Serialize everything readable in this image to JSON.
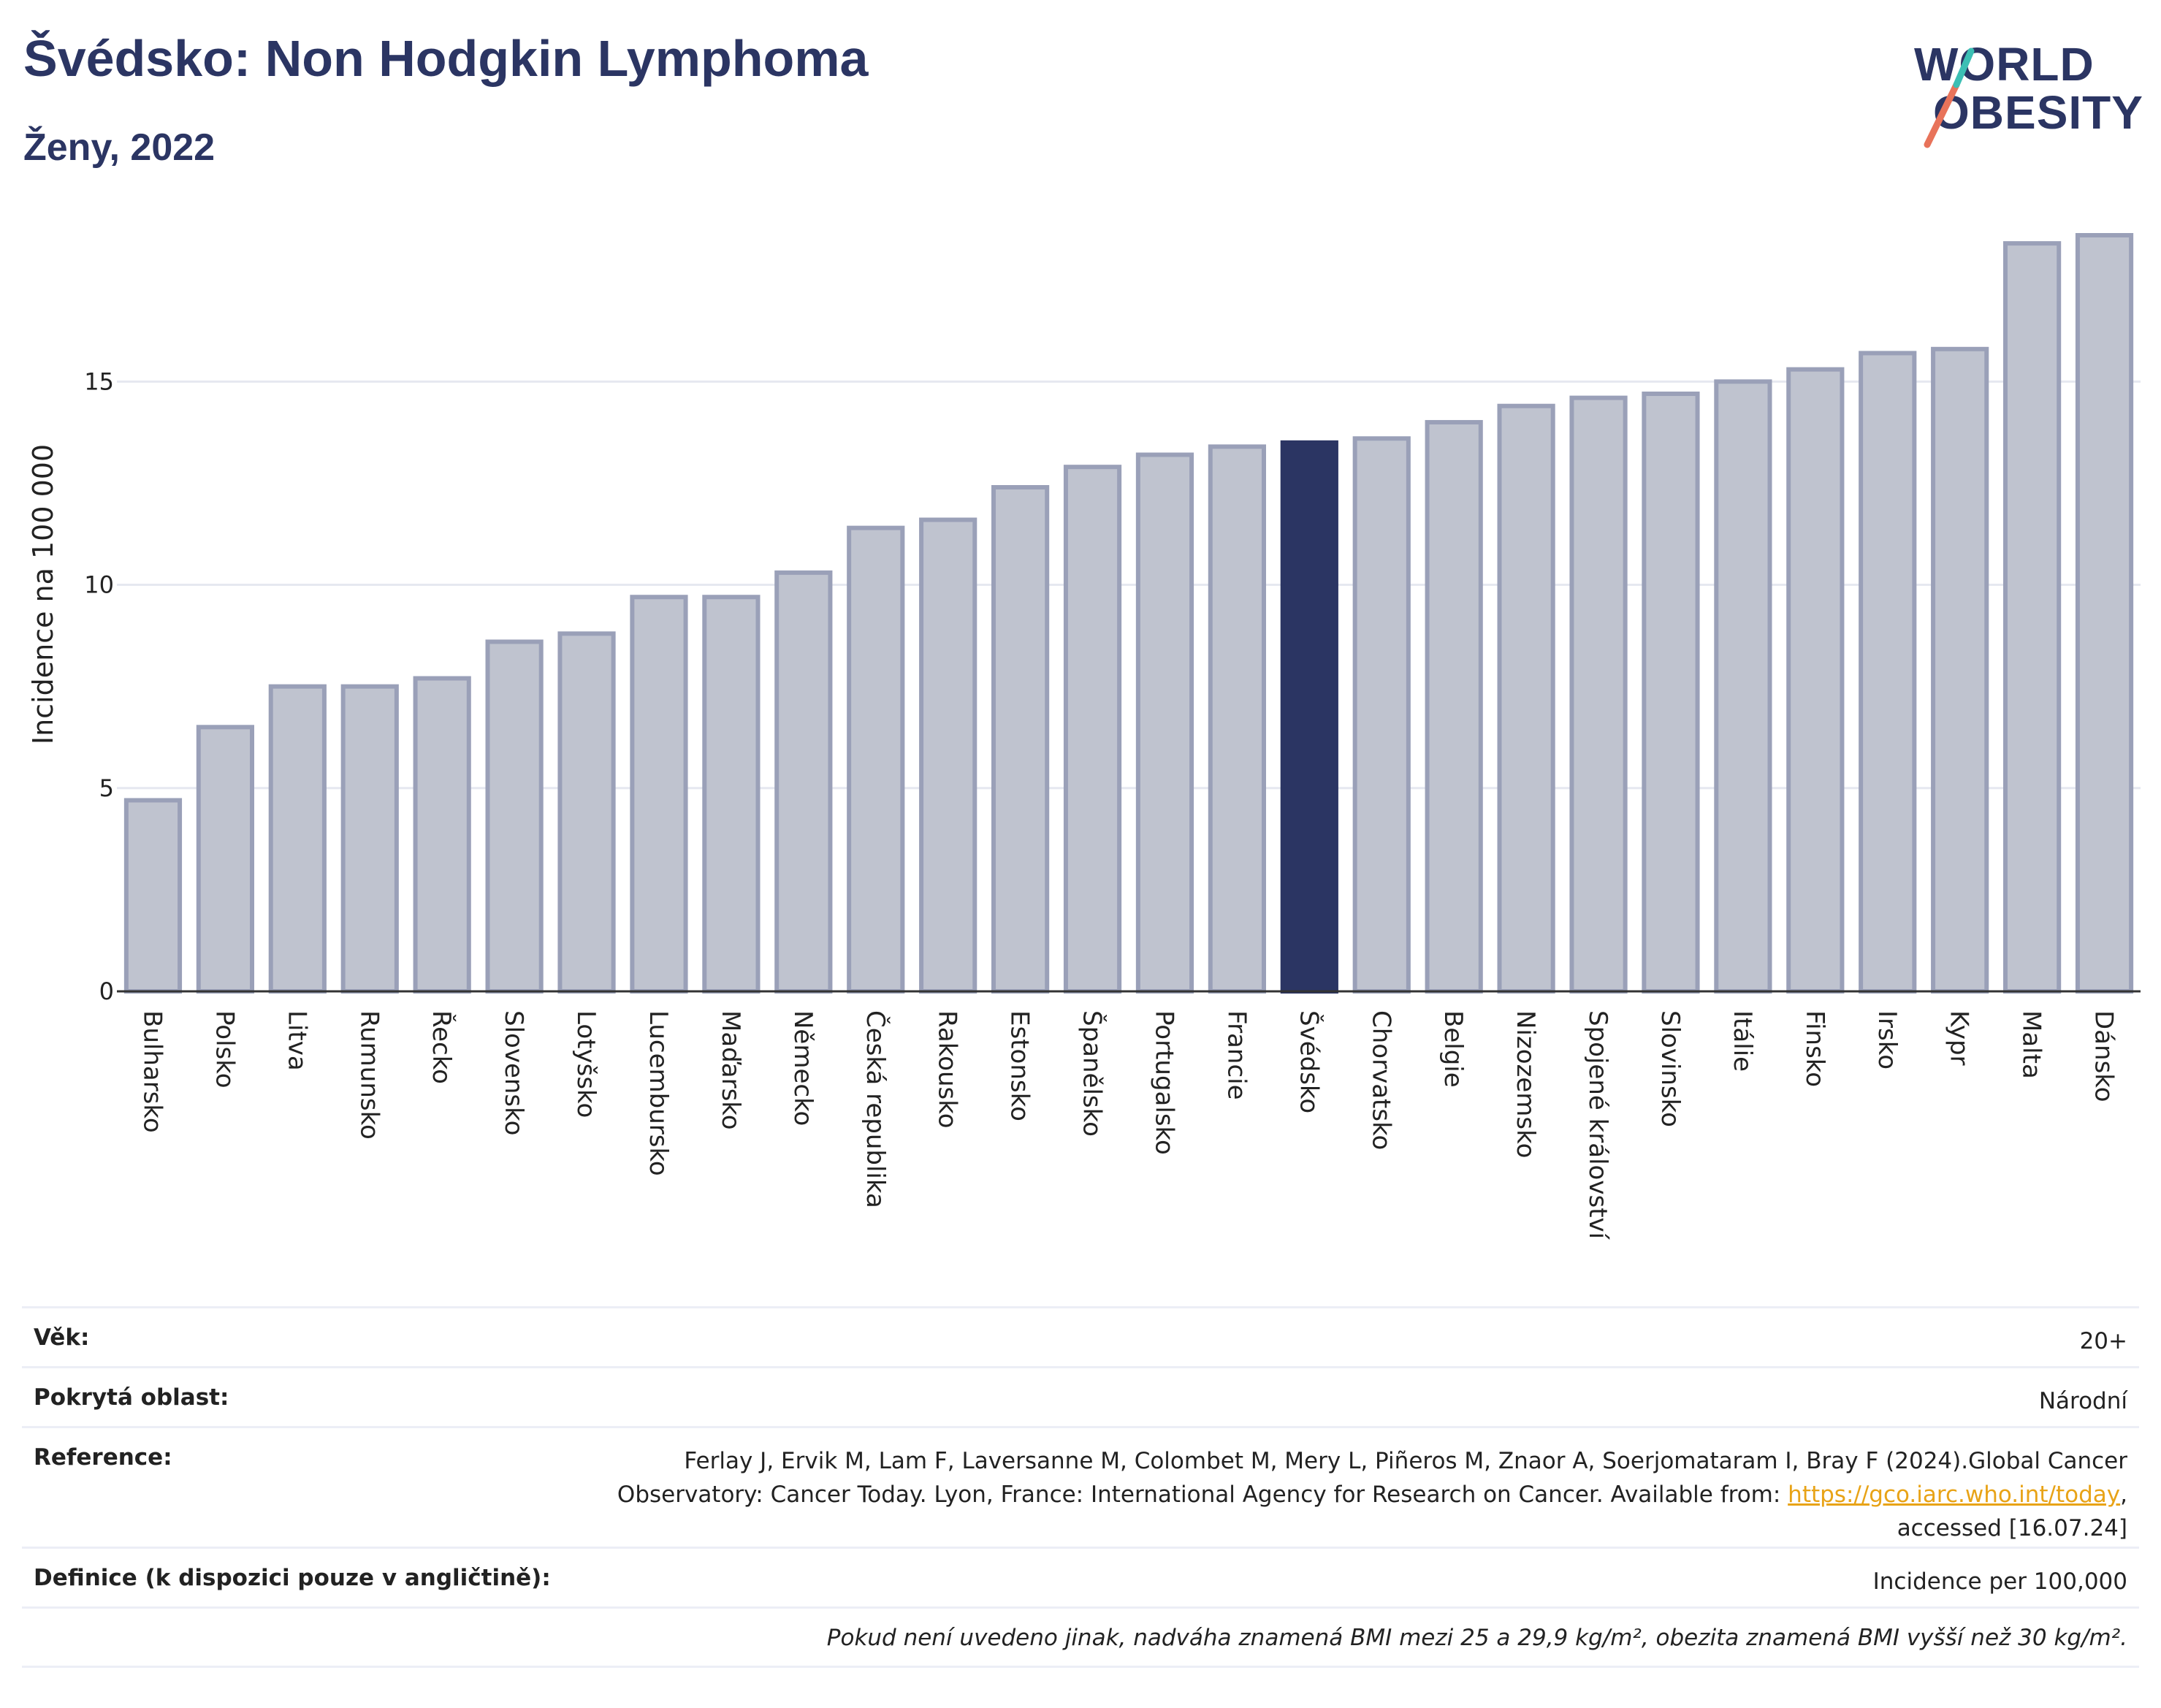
{
  "header": {
    "title": "Švédsko: Non Hodgkin Lymphoma",
    "subtitle": "Ženy, 2022"
  },
  "logo": {
    "line1": "WORLD",
    "line2": "OBESITY"
  },
  "colors": {
    "bar": "#bfc3cf",
    "bar_border": "#9aa0b8",
    "highlight": "#2b3563",
    "grid": "#e6e8f0",
    "brand": "#2b3563"
  },
  "chart_data": {
    "type": "bar",
    "ylabel": "Incidence na 100 000",
    "ylim": [
      0,
      19.2
    ],
    "yticks": [
      0,
      5,
      10,
      15
    ],
    "grid": true,
    "highlight": "Švédsko",
    "categories": [
      "Bulharsko",
      "Polsko",
      "Litva",
      "Rumunsko",
      "Řecko",
      "Slovensko",
      "Lotyšsko",
      "Lucembursko",
      "Maďarsko",
      "Německo",
      "Česká republika",
      "Rakousko",
      "Estonsko",
      "Španělsko",
      "Portugalsko",
      "Francie",
      "Švédsko",
      "Chorvatsko",
      "Belgie",
      "Nizozemsko",
      "Spojené království",
      "Slovinsko",
      "Itálie",
      "Finsko",
      "Irsko",
      "Kypr",
      "Malta",
      "Dánsko"
    ],
    "values": [
      4.7,
      6.5,
      7.5,
      7.5,
      7.7,
      8.6,
      8.8,
      9.7,
      9.7,
      10.3,
      11.4,
      11.6,
      12.4,
      12.9,
      13.2,
      13.4,
      13.5,
      13.6,
      14.0,
      14.4,
      14.6,
      14.7,
      15.0,
      15.3,
      15.7,
      15.8,
      18.4,
      18.6
    ]
  },
  "info": {
    "age_label": "Věk:",
    "age_value": "20+",
    "area_label": "Pokrytá oblast:",
    "area_value": "Národní",
    "ref_label": "Reference:",
    "ref_text": "Ferlay J, Ervik M, Lam F, Laversanne M, Colombet M, Mery L, Piñeros M, Znaor A, Soerjomataram I, Bray F (2024).Global Cancer Observatory: Cancer Today. Lyon, France: International Agency for Research on Cancer. Available from: ",
    "ref_link": "https://gco.iarc.who.int/today",
    "ref_tail": ", accessed [16.07.24]",
    "def_label": "Definice (k dispozici pouze v angličtině):",
    "def_value": "Incidence per 100,000",
    "note": "Pokud není uvedeno jinak, nadváha znamená BMI mezi 25 a 29,9 kg/m², obezita znamená BMI vyšší než 30 kg/m²."
  }
}
